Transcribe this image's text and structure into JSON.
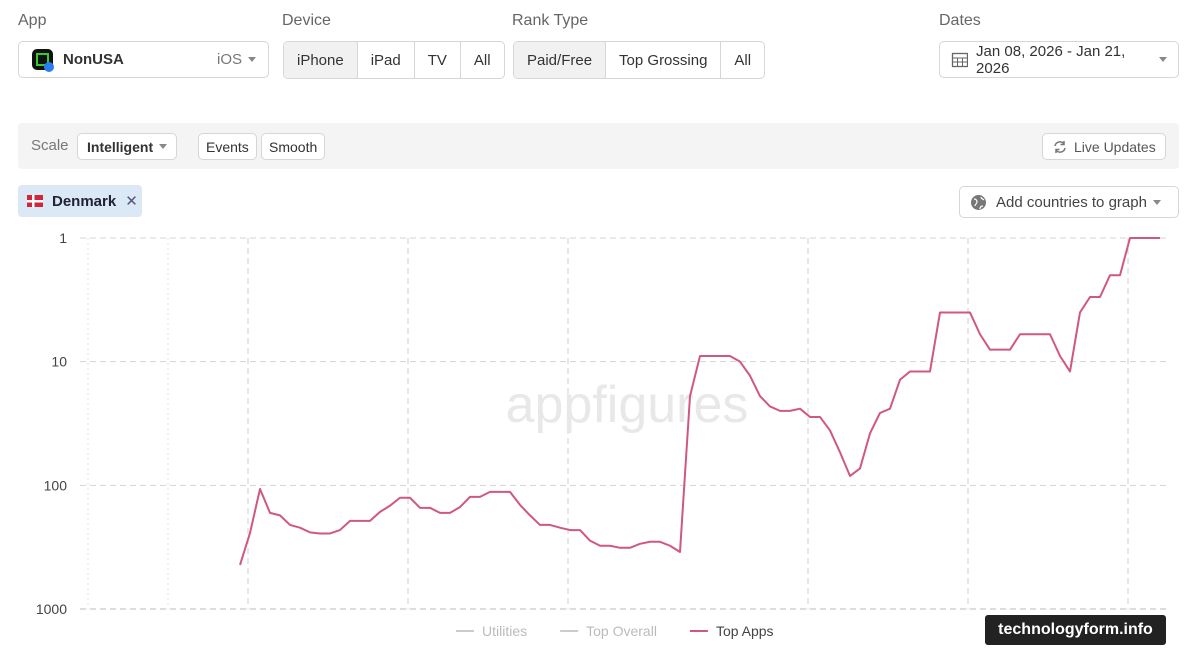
{
  "header": {
    "app_label": "App",
    "app_name": "NonUSA",
    "platform": "iOS",
    "device_label": "Device",
    "devices": [
      "iPhone",
      "iPad",
      "TV",
      "All"
    ],
    "rank_type_label": "Rank Type",
    "rank_types": [
      "Paid/Free",
      "Top Grossing",
      "All"
    ],
    "dates_label": "Dates",
    "date_range": "Jan 08, 2026 - Jan 21, 2026"
  },
  "toolbar": {
    "scale_label": "Scale",
    "scale": "Intelligent",
    "events": "Events",
    "smooth": "Smooth",
    "live_updates": "Live Updates"
  },
  "countries": {
    "selected": "Denmark",
    "add": "Add countries to graph"
  },
  "chart_data": {
    "type": "line",
    "log": true,
    "grid": true,
    "watermark": "appfigures",
    "ylim": [
      1000,
      1
    ],
    "yticks": [
      1,
      10,
      100,
      1000
    ],
    "series": [
      {
        "name": "Utilities",
        "color": "#cccccc",
        "visible": false
      },
      {
        "name": "Top Overall",
        "color": "#cccccc",
        "visible": false
      },
      {
        "name": "Top Apps",
        "color": "#d0587e",
        "visible": true,
        "values": [
          null,
          null,
          null,
          null,
          null,
          null,
          null,
          null,
          null,
          null,
          null,
          null,
          null,
          null,
          null,
          null,
          440,
          243,
          107,
          167,
          175,
          209,
          220,
          240,
          245,
          245,
          230,
          194,
          194,
          194,
          164,
          146,
          126,
          126,
          152,
          152,
          167,
          167,
          150,
          124,
          124,
          113,
          113,
          113,
          144,
          175,
          209,
          209,
          220,
          230,
          230,
          280,
          308,
          308,
          320,
          320,
          297,
          286,
          286,
          308,
          346,
          19,
          9,
          9,
          9,
          9,
          10,
          13,
          19,
          23,
          25,
          25,
          24,
          28,
          28,
          36,
          54,
          84,
          73,
          38,
          26,
          24,
          14,
          12,
          12,
          12,
          4,
          4,
          4,
          4,
          6,
          8,
          8,
          8,
          6,
          6,
          6,
          6,
          9,
          12,
          4,
          3,
          3,
          2,
          2,
          1,
          1,
          1,
          1
        ]
      }
    ]
  },
  "credit": "technologyform.info"
}
